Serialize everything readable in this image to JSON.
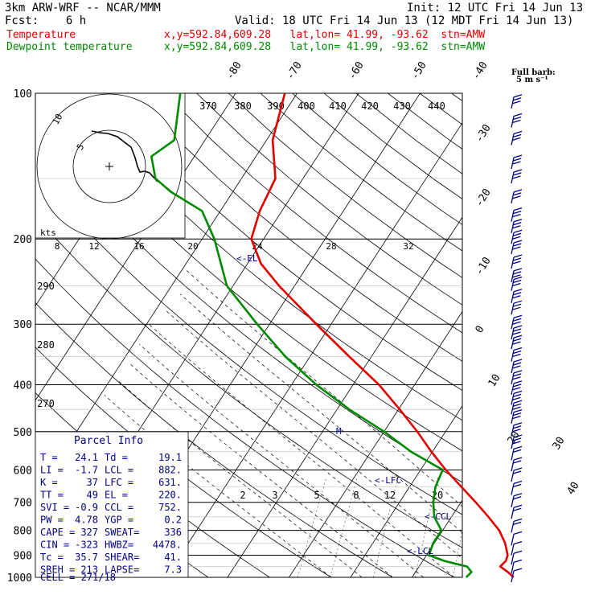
{
  "header": {
    "model": "3km ARW-WRF -- NCAR/MMM",
    "init": "Init: 12 UTC Fri 14 Jun 13",
    "fcst": "Fcst:    6 h",
    "valid": "Valid: 18 UTC Fri 14 Jun 13 (12 MDT Fri 14 Jun 13)",
    "temp_label": "Temperature",
    "dew_label": "Dewpoint temperature",
    "loc_line": "x,y=592.84,609.28   lat,lon= 41.99, -93.62  stn=AMW",
    "barb_title": "Full barb:",
    "barb_unit": "5 m s⁻¹"
  },
  "colors": {
    "temperature": "#e00000",
    "dewpoint": "#008a00",
    "parcel": "#000080",
    "barbs": "#000080"
  },
  "chart_data": {
    "type": "line",
    "title": "",
    "y_scale": "log-pressure",
    "ylim": [
      1000,
      100
    ],
    "pressure_levels": [
      "100",
      "200",
      "300",
      "400",
      "500",
      "600",
      "700",
      "800",
      "900",
      "1000"
    ],
    "isotherm_labels": [
      "-80",
      "-70",
      "-60",
      "-50",
      "-40",
      "-30",
      "-20",
      "-10",
      "0",
      "10",
      "20",
      "30",
      "40"
    ],
    "theta_labels": [
      "370",
      "380",
      "390",
      "400",
      "410",
      "420",
      "430",
      "440",
      "290",
      "280",
      "270"
    ],
    "mixing_ratio_labels": [
      "2",
      "3",
      "5",
      "8",
      "12",
      "20"
    ],
    "hodograph": {
      "units": "kts",
      "ring_labels": [
        "8",
        "12",
        "16",
        "20",
        "24",
        "28",
        "32"
      ],
      "ring_marks": [
        "5",
        "10"
      ]
    },
    "series": [
      {
        "name": "Temperature",
        "color": "#e00000",
        "points": [
          [
            1000,
            26.5
          ],
          [
            975,
            25
          ],
          [
            950,
            23.2
          ],
          [
            925,
            23.5
          ],
          [
            900,
            23.2
          ],
          [
            850,
            21.5
          ],
          [
            800,
            19.2
          ],
          [
            750,
            16
          ],
          [
            700,
            12.4
          ],
          [
            650,
            8.4
          ],
          [
            600,
            4.1
          ],
          [
            550,
            -0.2
          ],
          [
            500,
            -4.6
          ],
          [
            450,
            -9.8
          ],
          [
            400,
            -15.8
          ],
          [
            350,
            -23.6
          ],
          [
            300,
            -32.4
          ],
          [
            250,
            -42.5
          ],
          [
            225,
            -47.8
          ],
          [
            200,
            -52
          ],
          [
            175,
            -53.6
          ],
          [
            150,
            -54.5
          ],
          [
            125,
            -59
          ],
          [
            100,
            -62
          ]
        ]
      },
      {
        "name": "Dewpoint temperature",
        "color": "#008a00",
        "points": [
          [
            1000,
            18.8
          ],
          [
            975,
            19.1
          ],
          [
            950,
            17.8
          ],
          [
            925,
            13.5
          ],
          [
            900,
            10.4
          ],
          [
            850,
            9.8
          ],
          [
            800,
            9.8
          ],
          [
            750,
            7.2
          ],
          [
            700,
            5.5
          ],
          [
            650,
            4.2
          ],
          [
            600,
            3.6
          ],
          [
            550,
            -3.5
          ],
          [
            500,
            -10
          ],
          [
            450,
            -18
          ],
          [
            400,
            -26
          ],
          [
            350,
            -34
          ],
          [
            300,
            -42
          ],
          [
            250,
            -51
          ],
          [
            200,
            -58
          ],
          [
            175,
            -63
          ],
          [
            160,
            -70
          ],
          [
            150,
            -74
          ],
          [
            135,
            -77
          ],
          [
            125,
            -75
          ],
          [
            100,
            -79
          ]
        ]
      }
    ],
    "level_markers": [
      "<-EL",
      "<-LFC",
      "<-CCL",
      "<-LCL"
    ],
    "parcel_info": {
      "title": "Parcel Info",
      "rows": [
        [
          "T  =",
          "24.1",
          "Td =",
          "19.1"
        ],
        [
          "LI =",
          "-1.7",
          "LCL =",
          "882."
        ],
        [
          "K  =",
          "37",
          "LFC =",
          "631."
        ],
        [
          "TT =",
          "49",
          "EL =",
          "220."
        ],
        [
          "SVI =",
          "-0.9",
          "CCL =",
          "752."
        ],
        [
          "PW =",
          "4.78",
          "YGP =",
          "0.2"
        ],
        [
          "CAPE =",
          "327",
          "SWEAT=",
          "336"
        ],
        [
          "CIN =",
          "-323",
          "HWBZ=",
          "4478."
        ],
        [
          "Tc =",
          "35.7",
          "SHEAR=",
          "41."
        ],
        [
          "SREH =",
          "213",
          "LAPSE=",
          "7.3"
        ]
      ],
      "cell": "CELL = 271/18"
    }
  }
}
